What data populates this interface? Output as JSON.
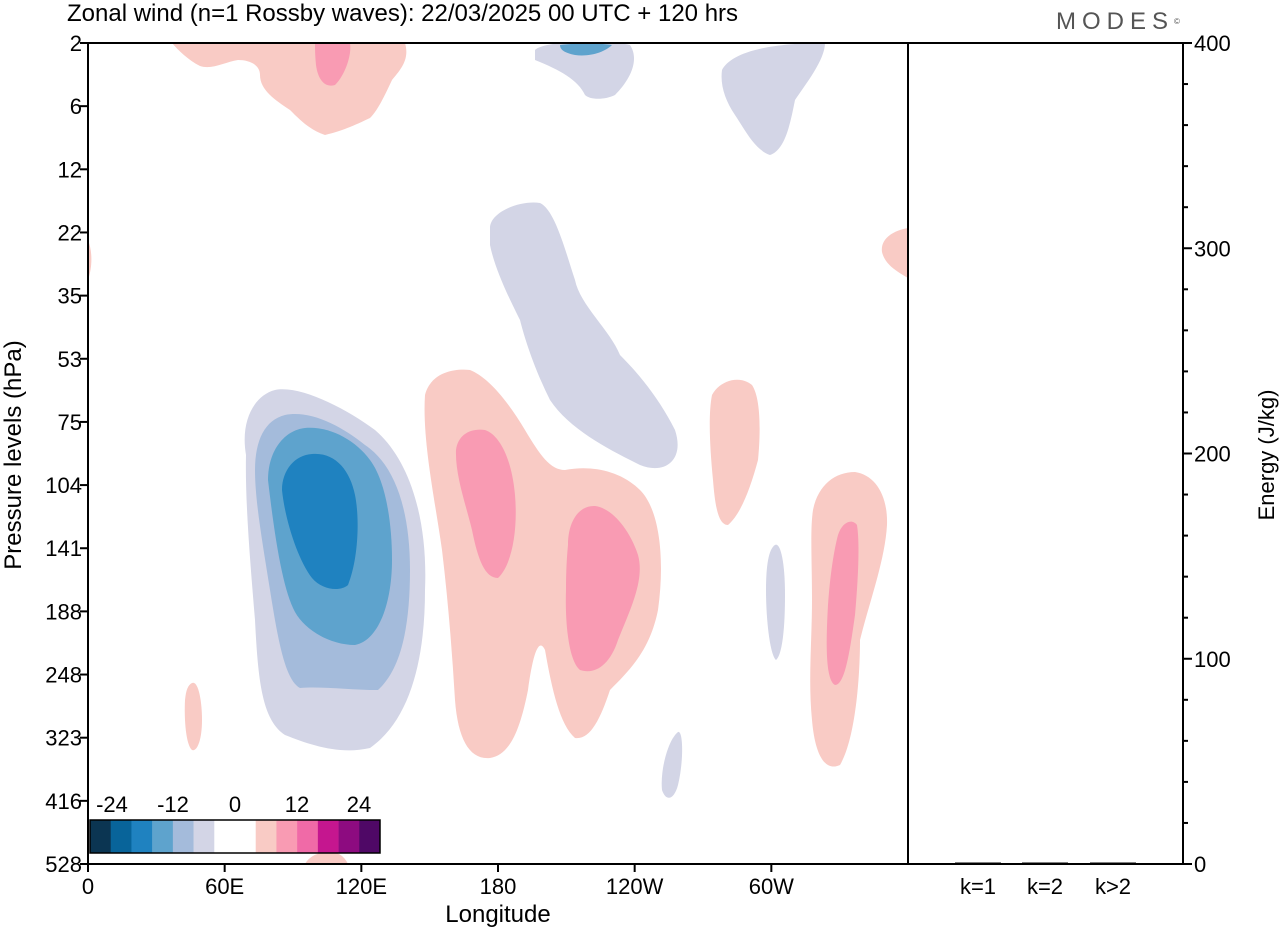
{
  "title": "Zonal wind (n=1 Rossby waves):  22/03/2025  00 UTC  + 120 hrs",
  "brand": "MODES",
  "brand_mark": "©",
  "chart_data": [
    {
      "type": "contour",
      "xlabel": "Longitude",
      "ylabel": "Pressure levels (hPa)",
      "x_ticks": [
        "0",
        "60E",
        "120E",
        "180",
        "120W",
        "60W"
      ],
      "x_tick_values": [
        0,
        60,
        120,
        180,
        240,
        300
      ],
      "xlim": [
        0,
        360
      ],
      "y_ticks": [
        "2",
        "6",
        "12",
        "22",
        "35",
        "53",
        "75",
        "104",
        "141",
        "188",
        "248",
        "323",
        "416",
        "528"
      ],
      "colorbar": {
        "labels": [
          "-24",
          "-12",
          "0",
          "12",
          "24"
        ],
        "colors": [
          "#0b3552",
          "#08649a",
          "#1f82c0",
          "#5ea3cd",
          "#a4bbdb",
          "#d3d5e6",
          "#ffffff",
          "#ffffff",
          "#f9cbc5",
          "#f99bb3",
          "#f06aa7",
          "#c5168f",
          "#8d0b80",
          "#4f0866"
        ]
      },
      "fills": [
        {
          "level": "neg1",
          "color": "#d3d5e6"
        },
        {
          "level": "neg2",
          "color": "#a4bbdb"
        },
        {
          "level": "neg3",
          "color": "#5ea3cd"
        },
        {
          "level": "neg4",
          "color": "#1f82c0"
        },
        {
          "level": "pos1",
          "color": "#f9cbc5"
        },
        {
          "level": "pos2",
          "color": "#f99bb3"
        }
      ]
    },
    {
      "type": "bar",
      "categories": [
        "k=1",
        "k=2",
        "k>2"
      ],
      "values": [
        0.5,
        0.5,
        0.6
      ],
      "ylabel": "Energy (J/kg)",
      "ylim": [
        0,
        400
      ],
      "y_ticks": [
        "0",
        "100",
        "200",
        "300",
        "400"
      ],
      "y_tick_values": [
        0,
        100,
        200,
        300,
        400
      ]
    }
  ]
}
